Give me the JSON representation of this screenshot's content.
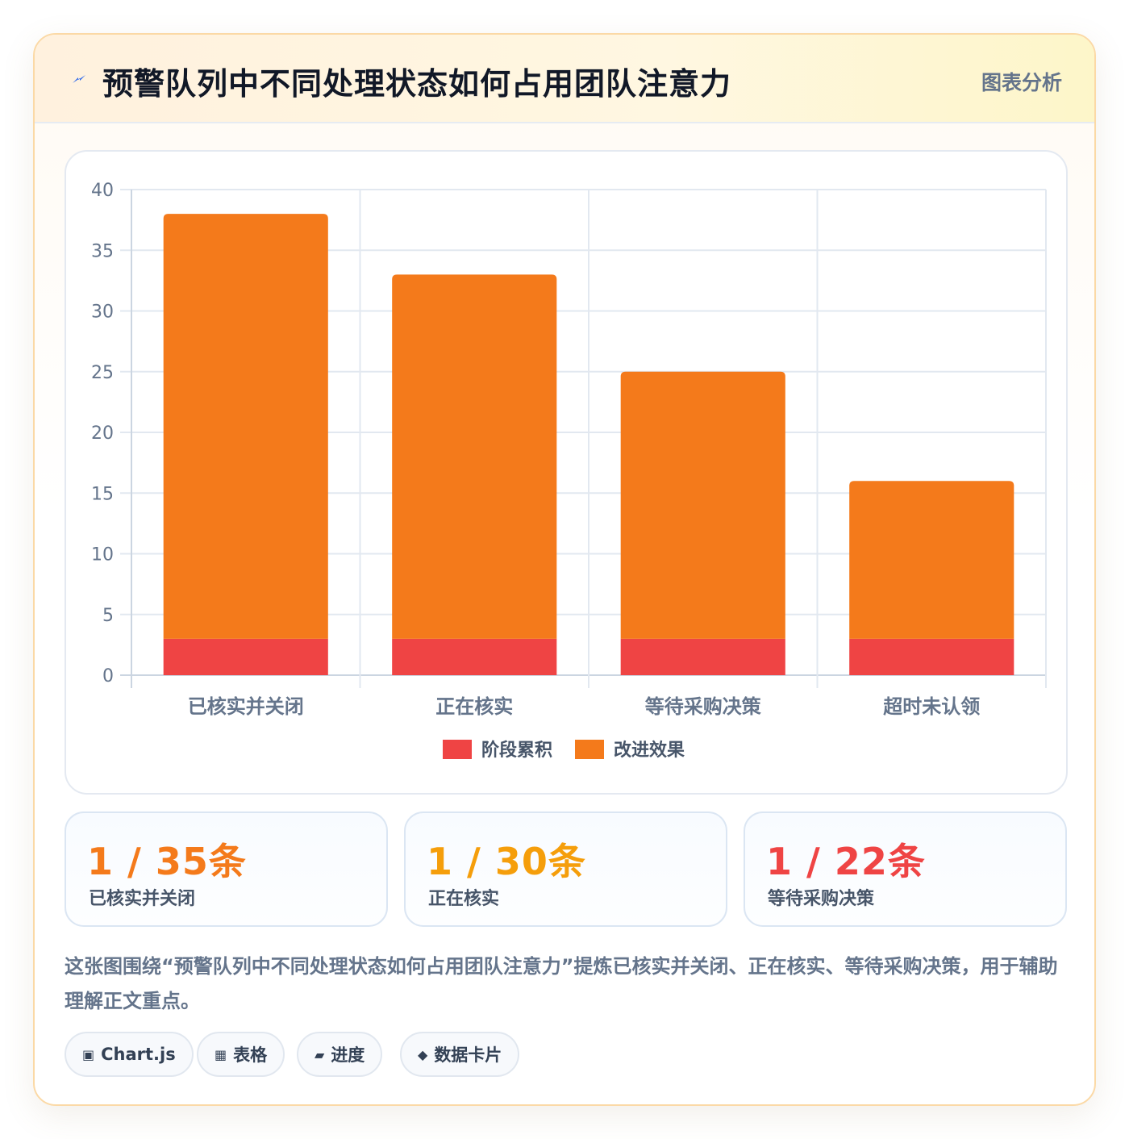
{
  "header": {
    "title": "预警队列中不同处理状态如何占用团队注意力",
    "tag": "图表分析",
    "icon": "lightning-icon"
  },
  "chart_data": {
    "type": "bar",
    "stacked": true,
    "categories": [
      "已核实并关闭",
      "正在核实",
      "等待采购决策",
      "超时未认领"
    ],
    "series": [
      {
        "name": "阶段累积",
        "values": [
          3,
          3,
          3,
          3
        ],
        "color": "#ef4444"
      },
      {
        "name": "改进效果",
        "values": [
          35,
          30,
          22,
          13
        ],
        "color": "#f47a1b"
      }
    ],
    "ylim": [
      0,
      40
    ],
    "yticks": [
      0,
      5,
      10,
      15,
      20,
      25,
      30,
      35,
      40
    ],
    "grid": true,
    "legend_position": "bottom"
  },
  "stats": [
    {
      "value": "1 / 35条",
      "label": "已核实并关闭",
      "color": "#f47a1b"
    },
    {
      "value": "1 / 30条",
      "label": "正在核实",
      "color": "#f59e0b"
    },
    {
      "value": "1 / 22条",
      "label": "等待采购决策",
      "color": "#ef4444"
    }
  ],
  "description": "这张图围绕“预警队列中不同处理状态如何占用团队注意力”提炼已核实并关闭、正在核实、等待采购决策，用于辅助理解正文重点。",
  "chips": [
    {
      "icon": "▣",
      "label": "Chart.js"
    },
    {
      "icon": "▦",
      "label": "表格"
    },
    {
      "icon": "▰",
      "label": "进度"
    },
    {
      "icon": "◆",
      "label": "数据卡片"
    }
  ]
}
